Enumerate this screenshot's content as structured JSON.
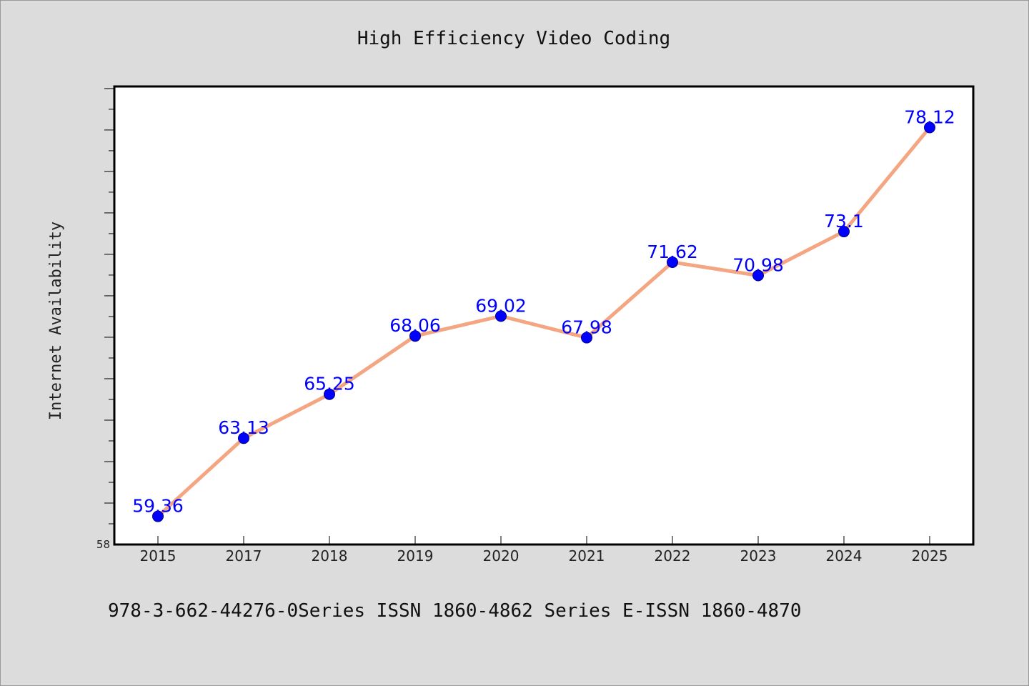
{
  "chart_data": {
    "type": "line",
    "title": "High Efficiency Video Coding",
    "xlabel": "",
    "ylabel": "Internet Availability",
    "categories": [
      "2015",
      "2017",
      "2018",
      "2019",
      "2020",
      "2021",
      "2022",
      "2023",
      "2024",
      "2025"
    ],
    "series": [
      {
        "values": [
          59.36,
          63.13,
          65.25,
          68.06,
          69.02,
          67.98,
          71.62,
          70.98,
          73.1,
          78.12
        ],
        "data_labels": [
          "59.36",
          "63.13",
          "65.25",
          "68.06",
          "69.02",
          "67.98",
          "71.62",
          "70.98",
          "73.1",
          "78.12"
        ]
      }
    ],
    "y_tick_labels": [
      "58"
    ],
    "ylim": [
      58,
      80.1
    ],
    "grid": false,
    "legend": "none",
    "colors": {
      "line": "#f4a582",
      "marker": "#0000ff",
      "data_label": "#0000ff",
      "background": "#dcdcdc",
      "plot_background": "#ffffff"
    }
  },
  "footer": {
    "text": "978-3-662-44276-0Series ISSN 1860-4862 Series E-ISSN 1860-4870"
  }
}
